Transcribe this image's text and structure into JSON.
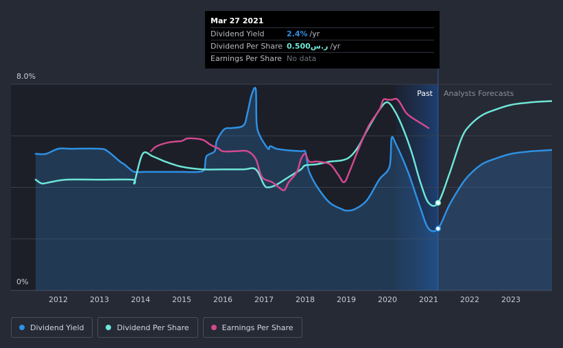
{
  "chart_data": {
    "type": "line",
    "y_axis": {
      "ylim": [
        0,
        8
      ],
      "tick_labels": [
        "8.0%",
        "0%"
      ],
      "tick_values": [
        8,
        0
      ]
    },
    "x_axis": {
      "xlim": [
        2011.4,
        2024.0
      ],
      "tick_labels": [
        "2012",
        "2013",
        "2014",
        "2015",
        "2016",
        "2017",
        "2018",
        "2019",
        "2020",
        "2021",
        "2022",
        "2023"
      ],
      "tick_values": [
        2012,
        2013,
        2014,
        2015,
        2016,
        2017,
        2018,
        2019,
        2020,
        2021,
        2022,
        2023
      ]
    },
    "regions": {
      "past_label": "Past",
      "forecast_label": "Analysts Forecasts",
      "past_end": 2021.23,
      "forecast_band_start": 2020.2
    },
    "grid": true,
    "series": [
      {
        "name": "Dividend Yield",
        "color": "#2e91e5",
        "filled": true,
        "x": [
          2011.45,
          2011.7,
          2012.0,
          2012.3,
          2013.0,
          2013.2,
          2013.5,
          2013.6,
          2013.75,
          2013.85,
          2014.1,
          2014.5,
          2015.0,
          2015.4,
          2015.55,
          2015.6,
          2015.8,
          2015.85,
          2016.0,
          2016.1,
          2016.2,
          2016.5,
          2016.6,
          2016.7,
          2016.8,
          2016.82,
          2016.9,
          2017.1,
          2017.15,
          2017.3,
          2017.5,
          2017.9,
          2018.0,
          2018.05,
          2018.1,
          2018.3,
          2018.6,
          2018.9,
          2019.0,
          2019.2,
          2019.5,
          2019.8,
          2020.05,
          2020.1,
          2020.2,
          2020.5,
          2020.8,
          2021.0,
          2021.23,
          2021.5,
          2021.8,
          2022.0,
          2022.3,
          2022.6,
          2023.0,
          2023.5,
          2024.0
        ],
        "values": [
          5.3,
          5.3,
          5.5,
          5.5,
          5.5,
          5.4,
          5.0,
          4.9,
          4.7,
          4.6,
          4.6,
          4.6,
          4.6,
          4.6,
          4.7,
          5.2,
          5.4,
          5.8,
          6.2,
          6.3,
          6.3,
          6.4,
          6.9,
          7.6,
          7.8,
          6.5,
          6.0,
          5.5,
          5.6,
          5.5,
          5.45,
          5.4,
          5.4,
          5.0,
          4.6,
          4.0,
          3.4,
          3.15,
          3.1,
          3.15,
          3.5,
          4.3,
          4.8,
          5.9,
          5.7,
          4.6,
          3.2,
          2.4,
          2.4,
          3.3,
          4.1,
          4.5,
          4.9,
          5.1,
          5.3,
          5.4,
          5.45
        ]
      },
      {
        "name": "Dividend Per Share",
        "color": "#6ee6d7",
        "filled": false,
        "x": [
          2011.45,
          2011.6,
          2011.8,
          2012.2,
          2013.0,
          2013.8,
          2013.85,
          2014.05,
          2014.3,
          2014.6,
          2015.0,
          2015.5,
          2016.0,
          2016.5,
          2016.8,
          2017.0,
          2017.1,
          2017.3,
          2017.6,
          2017.9,
          2018.0,
          2018.3,
          2018.6,
          2018.9,
          2019.1,
          2019.3,
          2019.5,
          2019.8,
          2020.0,
          2020.2,
          2020.4,
          2020.6,
          2020.8,
          2021.0,
          2021.23,
          2021.5,
          2021.8,
          2022.0,
          2022.3,
          2022.6,
          2023.0,
          2023.5,
          2024.0
        ],
        "values": [
          4.3,
          4.15,
          4.2,
          4.3,
          4.3,
          4.3,
          4.2,
          5.3,
          5.2,
          5.0,
          4.8,
          4.7,
          4.7,
          4.7,
          4.7,
          4.1,
          4.0,
          4.1,
          4.4,
          4.7,
          4.85,
          4.9,
          5.0,
          5.05,
          5.2,
          5.6,
          6.2,
          7.0,
          7.3,
          6.9,
          6.2,
          5.3,
          4.2,
          3.4,
          3.4,
          4.5,
          5.9,
          6.4,
          6.8,
          7.0,
          7.2,
          7.3,
          7.35
        ]
      },
      {
        "name": "Earnings Per Share",
        "color": "#d2498f",
        "filled": false,
        "x": [
          2014.25,
          2014.4,
          2014.7,
          2015.0,
          2015.15,
          2015.5,
          2015.7,
          2015.9,
          2016.0,
          2016.3,
          2016.6,
          2016.8,
          2016.95,
          2017.2,
          2017.4,
          2017.5,
          2017.6,
          2017.8,
          2017.9,
          2018.0,
          2018.1,
          2018.3,
          2018.6,
          2018.8,
          2018.95,
          2019.1,
          2019.3,
          2019.55,
          2019.8,
          2019.9,
          2020.0,
          2020.1,
          2020.25,
          2020.45,
          2020.6,
          2020.8,
          2021.0
        ],
        "values": [
          5.4,
          5.6,
          5.75,
          5.8,
          5.9,
          5.85,
          5.65,
          5.5,
          5.4,
          5.4,
          5.4,
          5.1,
          4.4,
          4.2,
          3.95,
          3.9,
          4.2,
          4.6,
          5.1,
          5.3,
          5.0,
          5.0,
          4.9,
          4.5,
          4.2,
          4.7,
          5.5,
          6.4,
          7.0,
          7.4,
          7.4,
          7.4,
          7.4,
          6.9,
          6.7,
          6.5,
          6.3
        ]
      }
    ],
    "markers": [
      {
        "series": "Dividend Yield",
        "x": 2021.23,
        "value": 2.4
      },
      {
        "series": "Dividend Per Share",
        "x": 2021.23,
        "value": 3.4
      }
    ]
  },
  "tooltip": {
    "date": "Mar 27 2021",
    "rows": [
      {
        "name": "Dividend Yield",
        "value": "2.4%",
        "unit": "/yr",
        "color": "#2e91e5"
      },
      {
        "name": "Dividend Per Share",
        "value": "0.500ر.س",
        "unit": "/yr",
        "color": "#6ee6d7"
      },
      {
        "name": "Earnings Per Share",
        "value": "No data",
        "unit": "",
        "color": "#6f7480"
      }
    ]
  },
  "legend": {
    "items": [
      {
        "label": "Dividend Yield",
        "color": "#2e91e5"
      },
      {
        "label": "Dividend Per Share",
        "color": "#6ee6d7"
      },
      {
        "label": "Earnings Per Share",
        "color": "#d2498f"
      }
    ]
  }
}
